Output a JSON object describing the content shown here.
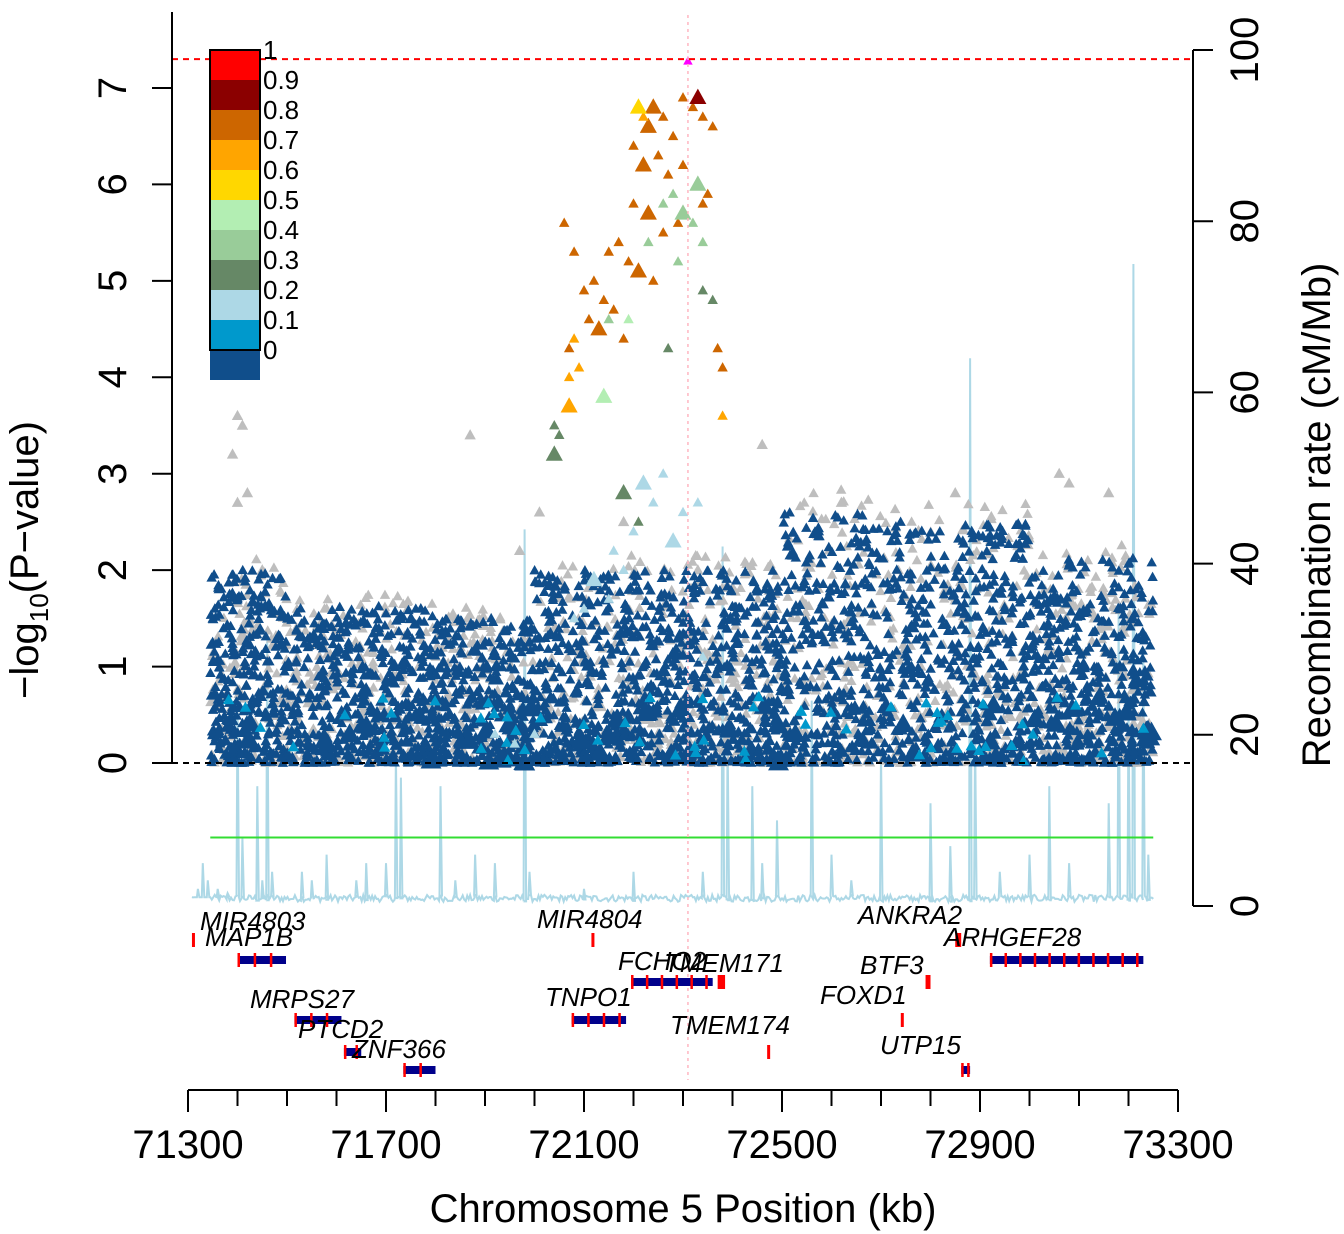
{
  "chart_data": {
    "type": "scatter",
    "title": "",
    "xlabel": "Chromosome 5 Position (kb)",
    "ylabel": "−log10(P−value)",
    "y2label": "Recombination rate (cM/Mb)",
    "xlim": [
      71300,
      73300
    ],
    "ylim": [
      0,
      7.3
    ],
    "y2lim": [
      0,
      100
    ],
    "xticks": [
      71300,
      71700,
      72100,
      72500,
      72900,
      73300
    ],
    "yticks": [
      0,
      1,
      2,
      3,
      4,
      5,
      6,
      7
    ],
    "y2ticks": [
      0,
      20,
      40,
      60,
      80,
      100
    ],
    "significance_line": 7.3,
    "lead_snp": {
      "x": 72310,
      "y": 7.3,
      "color": "#ff00ff"
    },
    "legend": {
      "placement": "top-left",
      "labels": [
        "1",
        "0.9",
        "0.8",
        "0.7",
        "0.6",
        "0.5",
        "0.4",
        "0.3",
        "0.2",
        "0.1",
        "0"
      ],
      "colors": [
        "#ff0000",
        "#8b0000",
        "#cd6600",
        "#ffa500",
        "#ffd700",
        "#b3eeb3",
        "#99cc99",
        "#668866",
        "#add8e6",
        "#0099cc",
        "#104e8b"
      ]
    },
    "highlight_clusters": [
      {
        "r2": "0.7",
        "color": "#cd6600",
        "points": [
          [
            72240,
            6.8
          ],
          [
            72260,
            6.7
          ],
          [
            72280,
            6.5
          ],
          [
            72300,
            6.9
          ],
          [
            72320,
            6.8
          ],
          [
            72340,
            6.7
          ],
          [
            72360,
            6.6
          ],
          [
            72220,
            6.2
          ],
          [
            72250,
            6.3
          ],
          [
            72270,
            6.1
          ],
          [
            72300,
            6.2
          ],
          [
            72330,
            6.0
          ],
          [
            72350,
            5.9
          ],
          [
            72200,
            5.8
          ],
          [
            72230,
            5.7
          ],
          [
            72260,
            5.5
          ],
          [
            72290,
            5.6
          ],
          [
            72340,
            5.8
          ],
          [
            72170,
            5.4
          ],
          [
            72150,
            5.3
          ],
          [
            72190,
            5.2
          ],
          [
            72210,
            5.1
          ],
          [
            72240,
            5.0
          ],
          [
            72120,
            5.0
          ],
          [
            72100,
            4.9
          ],
          [
            72140,
            4.8
          ],
          [
            72160,
            4.7
          ],
          [
            72070,
            4.3
          ],
          [
            72130,
            4.5
          ],
          [
            72180,
            4.4
          ],
          [
            72370,
            4.3
          ],
          [
            72110,
            4.6
          ],
          [
            72080,
            5.3
          ],
          [
            72060,
            5.6
          ],
          [
            72200,
            6.4
          ],
          [
            72230,
            6.6
          ],
          [
            72380,
            4.1
          ]
        ]
      },
      {
        "r2": "0.8",
        "color": "#8b0000",
        "points": [
          [
            72330,
            6.9
          ]
        ]
      },
      {
        "r2": "0.6",
        "color": "#ffa500",
        "points": [
          [
            72070,
            3.7
          ],
          [
            72070,
            4.0
          ],
          [
            72080,
            4.4
          ],
          [
            72090,
            4.1
          ],
          [
            72380,
            3.6
          ],
          [
            72220,
            6.7
          ]
        ]
      },
      {
        "r2": "0.5",
        "color": "#ffd700",
        "points": [
          [
            72210,
            6.8
          ]
        ]
      },
      {
        "r2": "0.4",
        "color": "#b3eeb3",
        "points": [
          [
            72140,
            3.8
          ],
          [
            72190,
            4.6
          ]
        ]
      },
      {
        "r2": "0.3",
        "color": "#99cc99",
        "points": [
          [
            72300,
            5.7
          ],
          [
            72280,
            5.9
          ],
          [
            72320,
            5.6
          ],
          [
            72260,
            5.8
          ],
          [
            72340,
            5.4
          ],
          [
            72230,
            5.4
          ],
          [
            72150,
            4.6
          ],
          [
            72330,
            6.0
          ],
          [
            72290,
            5.2
          ]
        ]
      },
      {
        "r2": "0.2",
        "color": "#668866",
        "points": [
          [
            72040,
            3.2
          ],
          [
            72040,
            3.5
          ],
          [
            72050,
            3.4
          ],
          [
            72340,
            4.9
          ],
          [
            72360,
            4.8
          ],
          [
            72270,
            4.3
          ],
          [
            72210,
            2.5
          ],
          [
            72180,
            2.8
          ]
        ]
      },
      {
        "r2": "0.1",
        "color": "#add8e6",
        "points": [
          [
            72220,
            2.9
          ],
          [
            72240,
            2.7
          ],
          [
            72300,
            2.6
          ],
          [
            72330,
            2.7
          ],
          [
            72180,
            2.0
          ],
          [
            72160,
            2.2
          ],
          [
            72260,
            3.0
          ],
          [
            72120,
            1.9
          ],
          [
            72100,
            1.6
          ],
          [
            72340,
            1.1
          ],
          [
            72000,
            0.3
          ],
          [
            71960,
            0.2
          ],
          [
            71920,
            0.3
          ],
          [
            72200,
            2.4
          ],
          [
            72280,
            2.3
          ],
          [
            72150,
            1.7
          ],
          [
            72080,
            1.5
          ]
        ]
      }
    ],
    "gray_tall_points": [
      [
        71400,
        3.6
      ],
      [
        71410,
        3.5
      ],
      [
        71390,
        3.2
      ],
      [
        71400,
        2.7
      ],
      [
        71420,
        2.8
      ],
      [
        71450,
        2.0
      ],
      [
        71870,
        3.4
      ],
      [
        72180,
        2.5
      ],
      [
        72460,
        3.3
      ],
      [
        72620,
        2.7
      ],
      [
        72850,
        2.8
      ],
      [
        73060,
        3.0
      ],
      [
        73080,
        2.9
      ],
      [
        73160,
        2.8
      ],
      [
        72330,
        2.0
      ],
      [
        72360,
        1.1
      ],
      [
        71970,
        2.2
      ],
      [
        72010,
        2.6
      ]
    ],
    "recombination_spikes": [
      [
        71310,
        1
      ],
      [
        71320,
        2
      ],
      [
        71330,
        5
      ],
      [
        71340,
        3
      ],
      [
        71360,
        2
      ],
      [
        71380,
        1.5
      ],
      [
        71400,
        25
      ],
      [
        71410,
        8
      ],
      [
        71440,
        14
      ],
      [
        71450,
        3
      ],
      [
        71460,
        32
      ],
      [
        71470,
        4
      ],
      [
        71530,
        4
      ],
      [
        71550,
        3
      ],
      [
        71580,
        6
      ],
      [
        71640,
        3
      ],
      [
        71660,
        5
      ],
      [
        71700,
        5
      ],
      [
        71720,
        18
      ],
      [
        71730,
        15
      ],
      [
        71810,
        14
      ],
      [
        71840,
        3
      ],
      [
        71880,
        6
      ],
      [
        71920,
        5
      ],
      [
        71980,
        44
      ],
      [
        71990,
        4
      ],
      [
        72100,
        2
      ],
      [
        72200,
        4
      ],
      [
        72340,
        4
      ],
      [
        72380,
        42
      ],
      [
        72390,
        20
      ],
      [
        72440,
        14
      ],
      [
        72460,
        5
      ],
      [
        72490,
        10
      ],
      [
        72560,
        24
      ],
      [
        72600,
        6
      ],
      [
        72640,
        3
      ],
      [
        72700,
        18
      ],
      [
        72800,
        12
      ],
      [
        72840,
        7
      ],
      [
        72880,
        64
      ],
      [
        72890,
        20
      ],
      [
        72940,
        4
      ],
      [
        73000,
        6
      ],
      [
        73040,
        14
      ],
      [
        73080,
        5
      ],
      [
        73160,
        12
      ],
      [
        73180,
        35
      ],
      [
        73200,
        24
      ],
      [
        73210,
        75
      ],
      [
        73230,
        30
      ],
      [
        73240,
        6
      ],
      [
        73260,
        50
      ],
      [
        73270,
        10
      ]
    ],
    "recomb_avg_line": 8,
    "genes": [
      {
        "name": "MIR4803",
        "start": 71308,
        "end": 71312,
        "row": 0
      },
      {
        "name": "MAP1B",
        "start": 71400,
        "end": 71498,
        "row": 1
      },
      {
        "name": "MRPS27",
        "start": 71515,
        "end": 71610,
        "row": 3
      },
      {
        "name": "PTCD2",
        "start": 71615,
        "end": 71650,
        "row": 4
      },
      {
        "name": "ZNF366",
        "start": 71735,
        "end": 71800,
        "row": 5
      },
      {
        "name": "MIR4804",
        "start": 72115,
        "end": 72119,
        "row": 0
      },
      {
        "name": "TNPO1",
        "start": 72075,
        "end": 72185,
        "row": 3
      },
      {
        "name": "FCHO2",
        "start": 72195,
        "end": 72360,
        "row": 2
      },
      {
        "name": "TMEM171",
        "start": 72370,
        "end": 72385,
        "row": 2
      },
      {
        "name": "TMEM174",
        "start": 72470,
        "end": 72475,
        "row": 4
      },
      {
        "name": "FOXD1",
        "start": 72740,
        "end": 72745,
        "row": 3
      },
      {
        "name": "BTF3",
        "start": 72790,
        "end": 72800,
        "row": 2
      },
      {
        "name": "ANKRA2",
        "start": 72850,
        "end": 72862,
        "row": 0
      },
      {
        "name": "ARHGEF28",
        "start": 72920,
        "end": 73230,
        "row": 1
      },
      {
        "name": "UTP15",
        "start": 72862,
        "end": 72880,
        "row": 5
      }
    ]
  }
}
